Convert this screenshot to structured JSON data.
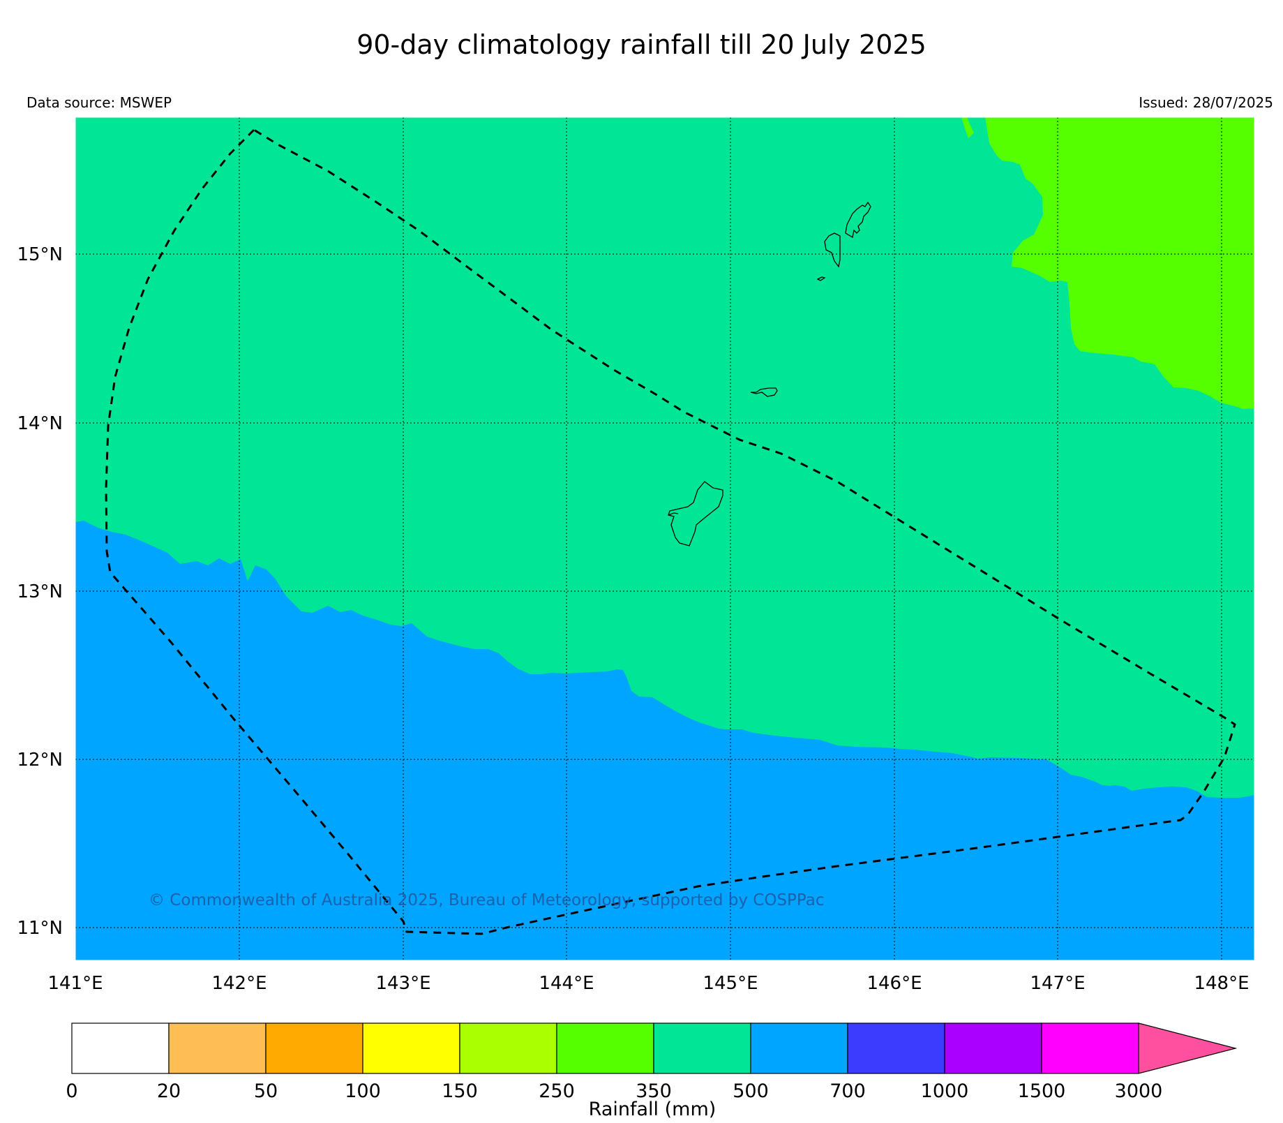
{
  "title": "90-day climatology rainfall till 20 July 2025",
  "data_source": "Data source: MSWEP",
  "issued": "Issued: 28/07/2025",
  "copyright": "© Commonwealth of Australia 2025, Bureau of Meteorology, supported by COSPPac",
  "latitude_labels": [
    "15°N",
    "14°N",
    "13°N",
    "12°N",
    "11°N"
  ],
  "longitude_labels": [
    "141°E",
    "142°E",
    "143°E",
    "144°E",
    "145°E",
    "146°E",
    "147°E",
    "148°E"
  ],
  "map_regions": [
    {
      "category": "250–350 mm",
      "color": "#55ff00",
      "location": "north-east"
    },
    {
      "category": "350–500 mm",
      "color": "#00e696",
      "location": "centre and north"
    },
    {
      "category": "500–700 mm",
      "color": "#00a5ff",
      "location": "south"
    }
  ],
  "colorbar": {
    "label": "Rainfall (mm)",
    "ticks": [
      "0",
      "20",
      "50",
      "100",
      "150",
      "250",
      "350",
      "500",
      "700",
      "1000",
      "1500",
      "3000"
    ],
    "colors": [
      "#ffffff",
      "#ffbe55",
      "#ffaa00",
      "#ffff00",
      "#aaff00",
      "#55ff00",
      "#00e696",
      "#00a5ff",
      "#3c3cff",
      "#aa00ff",
      "#ff00ff",
      "#ff50a0"
    ]
  }
}
